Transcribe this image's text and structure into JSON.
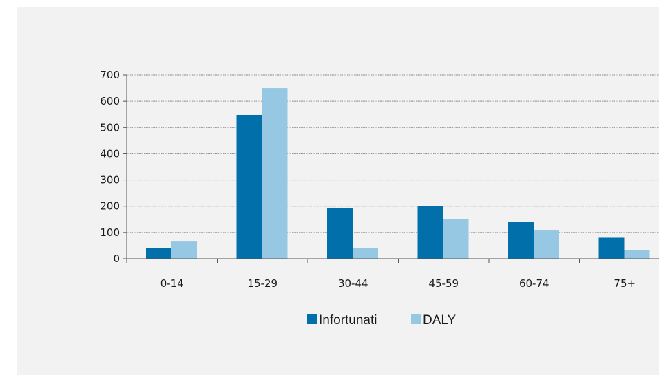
{
  "chart_data": {
    "type": "bar",
    "categories": [
      "0-14",
      "15-29",
      "30-44",
      "45-59",
      "60-74",
      "75+"
    ],
    "series": [
      {
        "name": "Infortunati",
        "values": [
          40,
          548,
          193,
          200,
          140,
          80
        ],
        "color": "#0170aa"
      },
      {
        "name": "DALY",
        "values": [
          68,
          650,
          42,
          150,
          110,
          32
        ],
        "color": "#96c8e4"
      }
    ],
    "ylim": [
      0,
      700
    ],
    "yticks": [
      0,
      100,
      200,
      300,
      400,
      500,
      600,
      700
    ],
    "grid": true,
    "legend_position": "bottom"
  }
}
